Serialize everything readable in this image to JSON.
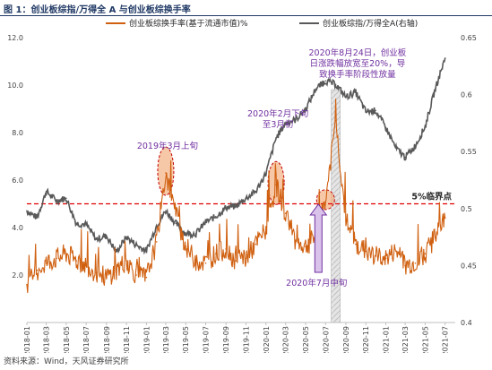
{
  "figure": {
    "title": "图 1：创业板综指/万得全 A 与创业板综换手率",
    "source": "资料来源：Wind，天风证券研究所"
  },
  "colors": {
    "turnover": "#d06010",
    "ratio": "#595959",
    "threshold": "#e00000",
    "annotation": "#7030a0",
    "highlight_fill": "#f4b183",
    "highlight_stroke": "#c00000",
    "shade": "#bfbfbf"
  },
  "chart_data": {
    "type": "line",
    "x_dates": [
      "2018-01",
      "2018-03",
      "2018-05",
      "2018-07",
      "2018-09",
      "2018-11",
      "2019-01",
      "2019-03",
      "2019-05",
      "2019-07",
      "2019-09",
      "2019-11",
      "2020-01",
      "2020-03",
      "2020-05",
      "2020-07",
      "2020-09",
      "2020-11",
      "2021-01",
      "2021-03",
      "2021-05",
      "2021-07"
    ],
    "y_left": {
      "ticks": [
        "2.0",
        "4.0",
        "6.0",
        "8.0",
        "10.0",
        "12.0"
      ],
      "lim": [
        0,
        12
      ]
    },
    "y_right": {
      "ticks": [
        "0.4",
        "0.45",
        "0.5",
        "0.55",
        "0.6",
        "0.65"
      ],
      "lim": [
        0.4,
        0.65
      ]
    },
    "series": [
      {
        "name": "创业板综换手率(基于流通市值)%",
        "axis": "left",
        "points": [
          [
            "2018-01",
            1.6
          ],
          [
            "2018-02",
            2.2
          ],
          [
            "2018-03",
            2.5
          ],
          [
            "2018-04",
            2.7
          ],
          [
            "2018-05",
            2.9
          ],
          [
            "2018-06",
            2.6
          ],
          [
            "2018-07",
            2.4
          ],
          [
            "2018-08",
            2.1
          ],
          [
            "2018-09",
            1.9
          ],
          [
            "2018-10",
            2.2
          ],
          [
            "2018-11",
            2.6
          ],
          [
            "2018-12",
            2.0
          ],
          [
            "2019-01",
            1.9
          ],
          [
            "2019-02",
            3.4
          ],
          [
            "2019-03",
            6.3
          ],
          [
            "2019-04",
            4.6
          ],
          [
            "2019-05",
            3.2
          ],
          [
            "2019-06",
            2.6
          ],
          [
            "2019-07",
            2.5
          ],
          [
            "2019-08",
            2.9
          ],
          [
            "2019-09",
            3.1
          ],
          [
            "2019-10",
            2.6
          ],
          [
            "2019-11",
            2.7
          ],
          [
            "2019-12",
            3.3
          ],
          [
            "2020-01",
            3.9
          ],
          [
            "2020-02",
            5.8
          ],
          [
            "2020-03",
            4.6
          ],
          [
            "2020-04",
            3.4
          ],
          [
            "2020-05",
            3.2
          ],
          [
            "2020-06",
            3.6
          ],
          [
            "2020-07",
            5.1
          ],
          [
            "2020-08",
            8.5
          ],
          [
            "2020-09",
            4.3
          ],
          [
            "2020-10",
            3.3
          ],
          [
            "2020-11",
            3.0
          ],
          [
            "2020-12",
            2.8
          ],
          [
            "2021-01",
            2.7
          ],
          [
            "2021-02",
            3.0
          ],
          [
            "2021-03",
            2.4
          ],
          [
            "2021-04",
            2.5
          ],
          [
            "2021-05",
            2.9
          ],
          [
            "2021-06",
            3.6
          ],
          [
            "2021-07",
            4.4
          ]
        ]
      },
      {
        "name": "创业板综指/万得全A(右轴)",
        "axis": "right",
        "points": [
          [
            "2018-01",
            0.498
          ],
          [
            "2018-02",
            0.492
          ],
          [
            "2018-03",
            0.515
          ],
          [
            "2018-04",
            0.507
          ],
          [
            "2018-05",
            0.509
          ],
          [
            "2018-06",
            0.487
          ],
          [
            "2018-07",
            0.486
          ],
          [
            "2018-08",
            0.473
          ],
          [
            "2018-09",
            0.476
          ],
          [
            "2018-10",
            0.462
          ],
          [
            "2018-11",
            0.475
          ],
          [
            "2018-12",
            0.468
          ],
          [
            "2019-01",
            0.463
          ],
          [
            "2019-02",
            0.485
          ],
          [
            "2019-03",
            0.498
          ],
          [
            "2019-04",
            0.487
          ],
          [
            "2019-05",
            0.478
          ],
          [
            "2019-06",
            0.478
          ],
          [
            "2019-07",
            0.488
          ],
          [
            "2019-08",
            0.493
          ],
          [
            "2019-09",
            0.501
          ],
          [
            "2019-10",
            0.502
          ],
          [
            "2019-11",
            0.509
          ],
          [
            "2019-12",
            0.515
          ],
          [
            "2020-01",
            0.531
          ],
          [
            "2020-02",
            0.562
          ],
          [
            "2020-03",
            0.575
          ],
          [
            "2020-04",
            0.578
          ],
          [
            "2020-05",
            0.587
          ],
          [
            "2020-06",
            0.605
          ],
          [
            "2020-07",
            0.612
          ],
          [
            "2020-08",
            0.609
          ],
          [
            "2020-09",
            0.598
          ],
          [
            "2020-10",
            0.602
          ],
          [
            "2020-11",
            0.585
          ],
          [
            "2020-12",
            0.586
          ],
          [
            "2021-01",
            0.571
          ],
          [
            "2021-02",
            0.553
          ],
          [
            "2021-03",
            0.545
          ],
          [
            "2021-04",
            0.555
          ],
          [
            "2021-05",
            0.572
          ],
          [
            "2021-06",
            0.605
          ],
          [
            "2021-07",
            0.632
          ]
        ]
      }
    ],
    "threshold": {
      "value": 5.0,
      "label": "5%临界点"
    },
    "annotations": [
      {
        "label": "2019年3月上旬",
        "date": "2019-03",
        "y": 6.3
      },
      {
        "label_lines": [
          "2020年2月下旬",
          "至3月初"
        ],
        "date": "2020-02",
        "y": 5.8
      },
      {
        "label": "2020年7月中旬",
        "date": "2020-07",
        "y": 5.1
      },
      {
        "label_lines": [
          "2020年8月24日，创业板",
          "日涨跌幅放宽至20%，导",
          "致换手率阶段性放量"
        ],
        "date": "2020-08",
        "y": 8.5
      }
    ],
    "legend_position": "top",
    "grid": false
  }
}
